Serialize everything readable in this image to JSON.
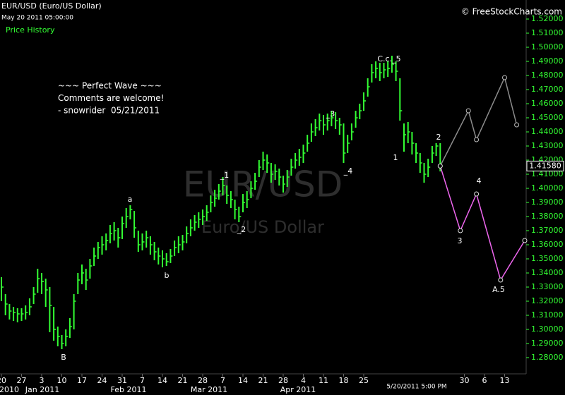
{
  "chart_data": {
    "type": "ohlc",
    "title": "EUR/USD (Euro/US Dollar)",
    "subtitle": "May 20 2011 05:00:00",
    "panel_label": "Price History",
    "source": "© FreeStockCharts.com",
    "watermark": "EUR/USD",
    "watermark_subtitle": "Euro/US Dollar",
    "cursor_label": "5/20/2011 5:00 PM",
    "period_labels": [
      "2010",
      "Jan 2011",
      "Feb 2011",
      "Mar 2011",
      "Apr 2011"
    ],
    "categories": [
      "20",
      null,
      null,
      null,
      null,
      "27",
      null,
      null,
      null,
      null,
      "3",
      null,
      null,
      null,
      null,
      "10",
      null,
      null,
      null,
      null,
      "17",
      null,
      null,
      null,
      null,
      "24",
      null,
      null,
      null,
      null,
      "31",
      null,
      null,
      null,
      null,
      "7",
      null,
      null,
      null,
      null,
      "14",
      null,
      null,
      null,
      null,
      "21",
      null,
      null,
      null,
      null,
      "28",
      null,
      null,
      null,
      null,
      "7",
      null,
      null,
      null,
      null,
      "14",
      null,
      null,
      null,
      null,
      "21",
      null,
      null,
      null,
      null,
      "28",
      null,
      null,
      null,
      null,
      "4",
      null,
      null,
      null,
      null,
      "11",
      null,
      null,
      null,
      null,
      "18",
      null,
      null,
      null,
      null,
      "25",
      null,
      null,
      null,
      null,
      null,
      null,
      null,
      null,
      null,
      null,
      null,
      null,
      null,
      null,
      null,
      null,
      null,
      null,
      null,
      null,
      null,
      null,
      null,
      null,
      "30",
      null,
      null,
      null,
      null,
      "6",
      null,
      null,
      null,
      null,
      "13",
      null,
      null,
      null,
      null,
      null
    ],
    "high": [
      1.337,
      1.325,
      1.318,
      1.316,
      1.315,
      1.315,
      1.317,
      1.322,
      1.33,
      1.343,
      1.34,
      1.336,
      1.33,
      1.316,
      1.302,
      1.296,
      1.3,
      1.308,
      1.325,
      1.34,
      1.346,
      1.343,
      1.35,
      1.358,
      1.362,
      1.366,
      1.368,
      1.374,
      1.376,
      1.372,
      1.38,
      1.386,
      1.388,
      1.384,
      1.37,
      1.368,
      1.37,
      1.366,
      1.362,
      1.358,
      1.356,
      1.354,
      1.357,
      1.363,
      1.366,
      1.367,
      1.373,
      1.378,
      1.381,
      1.383,
      1.385,
      1.388,
      1.395,
      1.399,
      1.403,
      1.408,
      1.402,
      1.398,
      1.392,
      1.387,
      1.396,
      1.398,
      1.405,
      1.411,
      1.42,
      1.426,
      1.424,
      1.418,
      1.417,
      1.414,
      1.409,
      1.413,
      1.421,
      1.425,
      1.428,
      1.431,
      1.438,
      1.446,
      1.449,
      1.453,
      1.452,
      1.453,
      1.455,
      1.454,
      1.45,
      1.446,
      1.438,
      1.446,
      1.455,
      1.46,
      1.468,
      1.478,
      1.488,
      1.49,
      1.489,
      1.489,
      1.49,
      1.494,
      1.49,
      1.478,
      1.446,
      1.447,
      1.44,
      1.432,
      1.425,
      1.418,
      1.421,
      1.43,
      1.432,
      1.432,
      null,
      null,
      null,
      null,
      null,
      null,
      null,
      null,
      null,
      null,
      null,
      null,
      null,
      null,
      null,
      null,
      null,
      null,
      null,
      null,
      null
    ],
    "low": [
      1.32,
      1.31,
      1.307,
      1.306,
      1.305,
      1.306,
      1.307,
      1.31,
      1.318,
      1.326,
      1.325,
      1.316,
      1.298,
      1.292,
      1.288,
      1.286,
      1.288,
      1.294,
      1.3,
      1.325,
      1.332,
      1.328,
      1.336,
      1.345,
      1.35,
      1.353,
      1.356,
      1.361,
      1.363,
      1.358,
      1.364,
      1.372,
      1.378,
      1.365,
      1.355,
      1.356,
      1.358,
      1.353,
      1.349,
      1.346,
      1.344,
      1.345,
      1.347,
      1.352,
      1.354,
      1.356,
      1.361,
      1.366,
      1.37,
      1.372,
      1.374,
      1.377,
      1.383,
      1.387,
      1.392,
      1.395,
      1.389,
      1.386,
      1.378,
      1.376,
      1.383,
      1.386,
      1.393,
      1.399,
      1.408,
      1.413,
      1.411,
      1.404,
      1.406,
      1.402,
      1.397,
      1.401,
      1.409,
      1.414,
      1.416,
      1.418,
      1.426,
      1.433,
      1.437,
      1.441,
      1.438,
      1.441,
      1.444,
      1.442,
      1.438,
      1.418,
      1.425,
      1.434,
      1.443,
      1.449,
      1.455,
      1.465,
      1.475,
      1.478,
      1.476,
      1.478,
      1.479,
      1.482,
      1.476,
      1.448,
      1.426,
      1.432,
      1.424,
      1.418,
      1.411,
      1.404,
      1.408,
      1.418,
      1.423,
      1.412,
      null,
      null,
      null,
      null,
      null,
      null,
      null,
      null,
      null,
      null,
      null,
      null,
      null,
      null,
      null,
      null,
      null,
      null,
      null,
      null,
      null
    ],
    "close": [
      1.33,
      1.318,
      1.313,
      1.312,
      1.311,
      1.311,
      1.312,
      1.316,
      1.325,
      1.336,
      1.334,
      1.328,
      1.317,
      1.3,
      1.295,
      1.29,
      1.295,
      1.302,
      1.32,
      1.335,
      1.34,
      1.335,
      1.345,
      1.352,
      1.358,
      1.36,
      1.363,
      1.368,
      1.37,
      1.365,
      1.375,
      1.38,
      1.385,
      1.372,
      1.36,
      1.362,
      1.365,
      1.36,
      1.355,
      1.352,
      1.35,
      1.348,
      1.352,
      1.358,
      1.36,
      1.362,
      1.368,
      1.372,
      1.376,
      1.378,
      1.38,
      1.383,
      1.39,
      1.393,
      1.398,
      1.402,
      1.395,
      1.392,
      1.385,
      1.38,
      1.39,
      1.392,
      1.4,
      1.405,
      1.415,
      1.42,
      1.418,
      1.41,
      1.412,
      1.408,
      1.403,
      1.408,
      1.415,
      1.42,
      1.422,
      1.425,
      1.432,
      1.44,
      1.443,
      1.448,
      1.445,
      1.448,
      1.45,
      1.448,
      1.445,
      1.425,
      1.432,
      1.44,
      1.45,
      1.455,
      1.462,
      1.472,
      1.482,
      1.485,
      1.482,
      1.484,
      1.485,
      1.488,
      1.483,
      1.455,
      1.438,
      1.44,
      1.432,
      1.425,
      1.418,
      1.41,
      1.415,
      1.425,
      1.43,
      1.4158,
      null,
      null,
      null,
      null,
      null,
      null,
      null,
      null,
      null,
      null,
      null,
      null,
      null,
      null,
      null,
      null,
      null,
      null,
      null,
      null,
      null
    ],
    "color": "#33ff33",
    "ylim": [
      1.2685,
      1.5335
    ],
    "yticks": [
      {
        "value": 1.28,
        "label": "1.28000"
      },
      {
        "value": 1.29,
        "label": "1.29000"
      },
      {
        "value": 1.3,
        "label": "1.30000"
      },
      {
        "value": 1.31,
        "label": "1.31000"
      },
      {
        "value": 1.32,
        "label": "1.32000"
      },
      {
        "value": 1.33,
        "label": "1.33000"
      },
      {
        "value": 1.34,
        "label": "1.34000"
      },
      {
        "value": 1.35,
        "label": "1.35000"
      },
      {
        "value": 1.36,
        "label": "1.36000"
      },
      {
        "value": 1.37,
        "label": "1.37000"
      },
      {
        "value": 1.38,
        "label": "1.38000"
      },
      {
        "value": 1.39,
        "label": "1.39000"
      },
      {
        "value": 1.4,
        "label": "1.40000"
      },
      {
        "value": 1.41,
        "label": "1.41000"
      },
      {
        "value": 1.42,
        "label": "1.42000"
      },
      {
        "value": 1.43,
        "label": "1.43000"
      },
      {
        "value": 1.44,
        "label": "1.44000"
      },
      {
        "value": 1.45,
        "label": "1.45000"
      },
      {
        "value": 1.46,
        "label": "1.46000"
      },
      {
        "value": 1.47,
        "label": "1.47000"
      },
      {
        "value": 1.48,
        "label": "1.48000"
      },
      {
        "value": 1.49,
        "label": "1.49000"
      },
      {
        "value": 1.5,
        "label": "1.50000"
      },
      {
        "value": 1.51,
        "label": "1.51000"
      },
      {
        "value": 1.52,
        "label": "1.52000"
      }
    ],
    "last_price": {
      "value": 1.4158,
      "label": "1.41580"
    },
    "projections": [
      {
        "color": "#8c8c8c",
        "connect_gaps": true,
        "values": [
          null,
          null,
          null,
          null,
          null,
          null,
          null,
          null,
          null,
          null,
          null,
          null,
          null,
          null,
          null,
          null,
          null,
          null,
          null,
          null,
          null,
          null,
          null,
          null,
          null,
          null,
          null,
          null,
          null,
          null,
          null,
          null,
          null,
          null,
          null,
          null,
          null,
          null,
          null,
          null,
          null,
          null,
          null,
          null,
          null,
          null,
          null,
          null,
          null,
          null,
          null,
          null,
          null,
          null,
          null,
          null,
          null,
          null,
          null,
          null,
          null,
          null,
          null,
          null,
          null,
          null,
          null,
          null,
          null,
          null,
          null,
          null,
          null,
          null,
          null,
          null,
          null,
          null,
          null,
          null,
          null,
          null,
          null,
          null,
          null,
          null,
          null,
          null,
          null,
          null,
          null,
          null,
          null,
          null,
          null,
          null,
          null,
          null,
          null,
          null,
          null,
          null,
          null,
          null,
          null,
          null,
          null,
          null,
          null,
          1.4158,
          null,
          null,
          null,
          null,
          null,
          null,
          1.455,
          null,
          1.4345,
          null,
          null,
          null,
          null,
          null,
          null,
          1.4785,
          null,
          null,
          1.445,
          null,
          null
        ]
      },
      {
        "color": "#ee66ee",
        "connect_gaps": true,
        "values": [
          null,
          null,
          null,
          null,
          null,
          null,
          null,
          null,
          null,
          null,
          null,
          null,
          null,
          null,
          null,
          null,
          null,
          null,
          null,
          null,
          null,
          null,
          null,
          null,
          null,
          null,
          null,
          null,
          null,
          null,
          null,
          null,
          null,
          null,
          null,
          null,
          null,
          null,
          null,
          null,
          null,
          null,
          null,
          null,
          null,
          null,
          null,
          null,
          null,
          null,
          null,
          null,
          null,
          null,
          null,
          null,
          null,
          null,
          null,
          null,
          null,
          null,
          null,
          null,
          null,
          null,
          null,
          null,
          null,
          null,
          null,
          null,
          null,
          null,
          null,
          null,
          null,
          null,
          null,
          null,
          null,
          null,
          null,
          null,
          null,
          null,
          null,
          null,
          null,
          null,
          null,
          null,
          null,
          null,
          null,
          null,
          null,
          null,
          null,
          null,
          null,
          null,
          null,
          null,
          null,
          null,
          null,
          null,
          null,
          1.4158,
          null,
          null,
          null,
          null,
          1.37,
          null,
          null,
          null,
          1.396,
          null,
          null,
          null,
          null,
          null,
          1.335,
          null,
          null,
          null,
          null,
          null,
          1.363
        ]
      }
    ],
    "annotations": [
      "a",
      "b",
      "B",
      "_1",
      "_2",
      "_3",
      "_4",
      "C.c._5",
      "1",
      "2",
      "3",
      "4",
      "A.5"
    ],
    "comment": [
      "~~~ Perfect Wave ~~~",
      "Comments are welcome!",
      "- snowrider  05/21/2011"
    ]
  }
}
